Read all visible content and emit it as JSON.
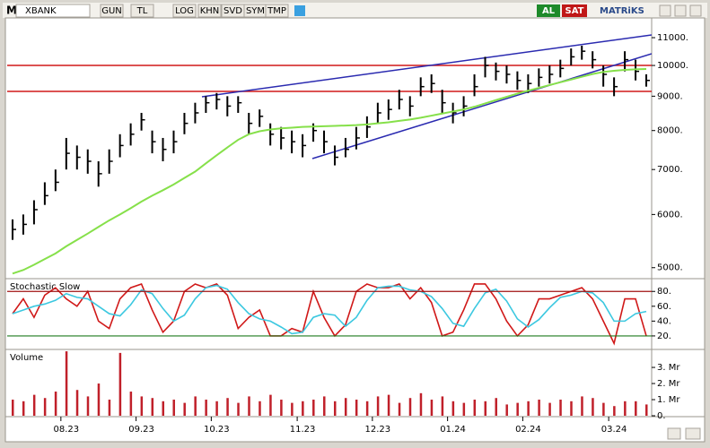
{
  "toolbar": {
    "logo": "M",
    "symbol": "XBANK",
    "buttons": [
      "GUN",
      "TL",
      "LOG",
      "KHN",
      "SVD",
      "SYM",
      "TMP"
    ],
    "buy": "AL",
    "sell": "SAT",
    "brand": "MATRiKS"
  },
  "chart_data": [
    {
      "type": "ohlc",
      "color": "#000000",
      "categories": [
        null,
        null,
        null,
        null,
        null,
        "08.23",
        null,
        null,
        null,
        null,
        null,
        null,
        "09.23",
        null,
        null,
        null,
        null,
        null,
        null,
        "10.23",
        null,
        null,
        null,
        null,
        null,
        null,
        null,
        "11.23",
        null,
        null,
        null,
        null,
        null,
        null,
        "12.23",
        null,
        null,
        null,
        null,
        null,
        null,
        "01.24",
        null,
        null,
        null,
        null,
        null,
        null,
        "02.24",
        null,
        null,
        null,
        null,
        null,
        null,
        null,
        "03.24",
        null,
        null,
        null
      ],
      "high": [
        5900,
        6000,
        6300,
        6700,
        7000,
        7800,
        7600,
        7500,
        7200,
        7500,
        7900,
        8200,
        8500,
        8000,
        7800,
        8000,
        8500,
        8800,
        9000,
        9100,
        9000,
        9000,
        8500,
        8600,
        8200,
        8100,
        8000,
        7900,
        8200,
        8000,
        7600,
        7800,
        8100,
        8400,
        8800,
        8900,
        9200,
        9000,
        9600,
        9700,
        9200,
        8800,
        9000,
        9700,
        10300,
        10100,
        10000,
        9800,
        9700,
        9900,
        10000,
        10200,
        10600,
        10700,
        10500,
        10000,
        9600,
        10500,
        10200,
        9700
      ],
      "low": [
        5500,
        5600,
        5800,
        6200,
        6500,
        7000,
        7000,
        6900,
        6600,
        6900,
        7300,
        7600,
        8000,
        7400,
        7200,
        7400,
        7900,
        8200,
        8500,
        8600,
        8400,
        8500,
        7900,
        8100,
        7600,
        7500,
        7400,
        7300,
        7700,
        7400,
        7100,
        7300,
        7500,
        7800,
        8200,
        8300,
        8600,
        8400,
        9000,
        9100,
        8500,
        8200,
        8400,
        9000,
        9600,
        9500,
        9400,
        9200,
        9100,
        9300,
        9400,
        9600,
        10000,
        10200,
        9900,
        9300,
        9000,
        9800,
        9500,
        9300
      ],
      "close": [
        5700,
        5800,
        6100,
        6400,
        6700,
        7400,
        7300,
        7200,
        6900,
        7200,
        7600,
        7900,
        8300,
        7700,
        7500,
        7700,
        8200,
        8500,
        8800,
        8900,
        8700,
        8800,
        8200,
        8400,
        7900,
        7800,
        7700,
        7600,
        8000,
        7700,
        7300,
        7500,
        7800,
        8100,
        8500,
        8600,
        8900,
        8700,
        9300,
        9400,
        8800,
        8500,
        8700,
        9300,
        10000,
        9800,
        9700,
        9500,
        9400,
        9600,
        9700,
        9900,
        10300,
        10500,
        10200,
        9700,
        9300,
        10200,
        9800,
        9500
      ],
      "overlays": [
        {
          "color": "#86e04a",
          "values": [
            4900,
            4960,
            5050,
            5150,
            5250,
            5380,
            5500,
            5620,
            5750,
            5880,
            6000,
            6130,
            6270,
            6400,
            6520,
            6650,
            6800,
            6950,
            7150,
            7350,
            7550,
            7750,
            7900,
            7980,
            8030,
            8060,
            8080,
            8100,
            8110,
            8120,
            8130,
            8140,
            8150,
            8170,
            8200,
            8230,
            8270,
            8310,
            8360,
            8420,
            8480,
            8540,
            8600,
            8680,
            8780,
            8880,
            8980,
            9080,
            9170,
            9260,
            9350,
            9440,
            9530,
            9620,
            9710,
            9780,
            9820,
            9850,
            9870,
            9880
          ]
        }
      ],
      "log": true,
      "ylim": [
        4830,
        11770
      ],
      "yticks": [
        {
          "value": 5000,
          "label": "5000."
        },
        {
          "value": 6000,
          "label": "6000."
        },
        {
          "value": 7000,
          "label": "7000."
        },
        {
          "value": 8000,
          "label": "8000."
        },
        {
          "value": 9000,
          "label": "9000."
        },
        {
          "value": 10000,
          "label": "10000."
        },
        {
          "value": 11000,
          "label": "11000."
        }
      ]
    },
    {
      "type": "line",
      "title": "Stochastic Slow",
      "series": [
        {
          "color": "#d01818",
          "values": [
            50,
            70,
            45,
            75,
            85,
            70,
            60,
            80,
            40,
            30,
            70,
            85,
            90,
            55,
            25,
            40,
            80,
            90,
            85,
            90,
            75,
            30,
            45,
            55,
            20,
            20,
            30,
            25,
            80,
            45,
            20,
            35,
            80,
            90,
            85,
            85,
            90,
            70,
            85,
            65,
            20,
            25,
            55,
            90,
            90,
            70,
            40,
            20,
            35,
            70,
            70,
            75,
            80,
            85,
            70,
            40,
            10,
            70,
            70,
            20
          ]
        },
        {
          "color": "#3cc8e0",
          "values": [
            50,
            55,
            60,
            63,
            68,
            77,
            72,
            70,
            60,
            50,
            47,
            62,
            82,
            77,
            57,
            40,
            48,
            70,
            85,
            88,
            83,
            65,
            50,
            43,
            40,
            32,
            23,
            25,
            45,
            50,
            48,
            33,
            45,
            68,
            85,
            87,
            87,
            82,
            80,
            73,
            57,
            37,
            33,
            57,
            78,
            83,
            67,
            43,
            32,
            42,
            58,
            72,
            75,
            80,
            78,
            65,
            40,
            40,
            50,
            53
          ]
        }
      ],
      "ylim": [
        3,
        96
      ],
      "yticks": [
        {
          "value": 20,
          "label": "20."
        },
        {
          "value": 40,
          "label": "40."
        },
        {
          "value": 60,
          "label": "60."
        },
        {
          "value": 80,
          "label": "80."
        }
      ]
    },
    {
      "type": "bar",
      "title": "Volume",
      "color": "#c0202a",
      "values": [
        1.0,
        0.9,
        1.3,
        1.1,
        1.5,
        4.0,
        1.6,
        1.2,
        2.0,
        1.0,
        3.9,
        1.5,
        1.2,
        1.1,
        0.9,
        1.0,
        0.8,
        1.2,
        1.0,
        0.9,
        1.1,
        0.8,
        1.2,
        0.9,
        1.3,
        1.0,
        0.8,
        0.9,
        1.0,
        1.2,
        0.9,
        1.1,
        1.0,
        0.9,
        1.2,
        1.3,
        0.8,
        1.1,
        1.4,
        1.0,
        1.2,
        0.9,
        0.8,
        1.0,
        0.9,
        1.1,
        0.7,
        0.8,
        0.9,
        1.0,
        0.8,
        1.0,
        0.9,
        1.2,
        1.1,
        0.8,
        0.6,
        0.9,
        0.9,
        0.7
      ],
      "ylim": [
        0,
        4.06
      ],
      "yticks": [
        {
          "value": 0,
          "label": "0."
        },
        {
          "value": 1,
          "label": "1. Mr"
        },
        {
          "value": 2,
          "label": "2. Mr"
        },
        {
          "value": 3,
          "label": "3. Mr"
        }
      ]
    }
  ]
}
